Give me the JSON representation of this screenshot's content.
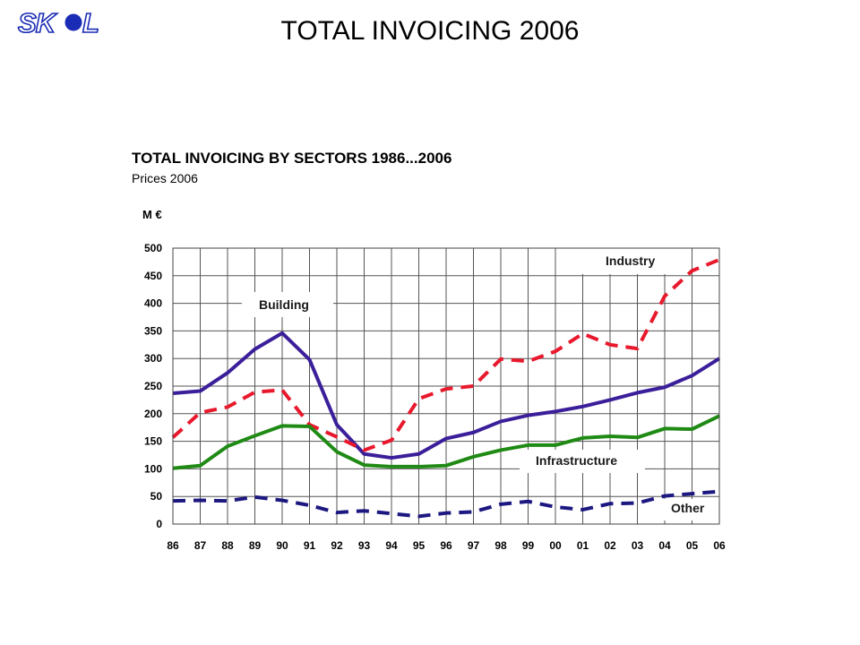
{
  "slide": {
    "title": "TOTAL INVOICING 2006",
    "logo_text": "SKOL",
    "logo_color": "#1a2bb5"
  },
  "chart_data": {
    "type": "line",
    "title": "TOTAL INVOICING BY SECTORS 1986...2006",
    "subtitle": "Prices 2006",
    "ylabel": "M €",
    "xlabel": "",
    "ylim": [
      0,
      500
    ],
    "yticks": [
      0,
      50,
      100,
      150,
      200,
      250,
      300,
      350,
      400,
      450,
      500
    ],
    "grid": true,
    "categories": [
      "86",
      "87",
      "88",
      "89",
      "90",
      "91",
      "92",
      "93",
      "94",
      "95",
      "96",
      "97",
      "98",
      "99",
      "00",
      "01",
      "02",
      "03",
      "04",
      "05",
      "06"
    ],
    "series": [
      {
        "name": "Building",
        "style": "solid",
        "color": "#3b1f9a",
        "values": [
          237,
          241,
          274,
          317,
          346,
          298,
          180,
          127,
          120,
          127,
          155,
          166,
          186,
          197,
          204,
          213,
          225,
          238,
          248,
          269,
          300
        ]
      },
      {
        "name": "Industry",
        "style": "dashed",
        "color": "#e8192c",
        "values": [
          157,
          202,
          212,
          239,
          243,
          180,
          158,
          134,
          152,
          227,
          245,
          250,
          299,
          295,
          313,
          345,
          325,
          318,
          413,
          459,
          479
        ]
      },
      {
        "name": "Infrastructure",
        "style": "solid",
        "color": "#1f8a14",
        "values": [
          101,
          106,
          141,
          160,
          178,
          177,
          131,
          107,
          104,
          104,
          106,
          122,
          134,
          143,
          143,
          156,
          159,
          157,
          173,
          172,
          196
        ]
      },
      {
        "name": "Other",
        "style": "dashed",
        "color": "#1c1880",
        "values": [
          42,
          43,
          42,
          49,
          43,
          34,
          21,
          24,
          19,
          14,
          20,
          22,
          36,
          41,
          31,
          26,
          37,
          38,
          51,
          55,
          59
        ]
      }
    ],
    "labels": [
      "Building",
      "Industry",
      "Infrastructure",
      "Other"
    ]
  }
}
